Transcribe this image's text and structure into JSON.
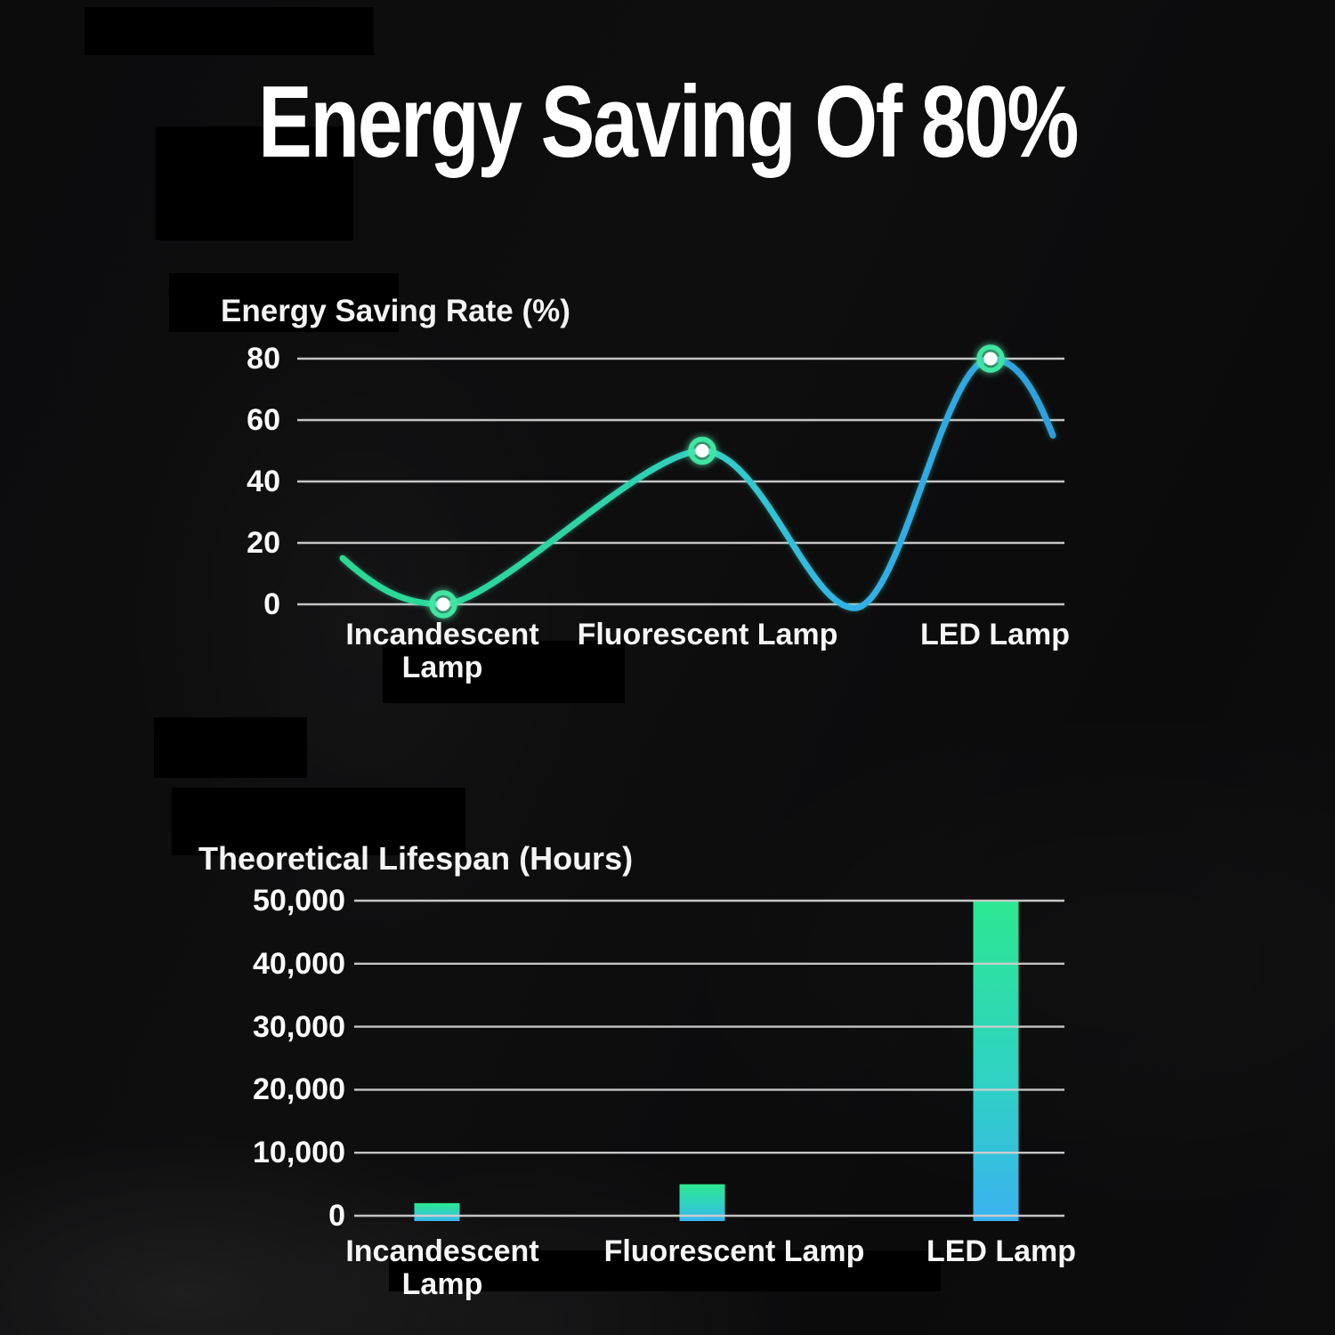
{
  "page": {
    "title": "Energy Saving Of 80%"
  },
  "chart_data": [
    {
      "type": "line",
      "title": "Energy Saving Rate (%)",
      "categories": [
        "Incandescent Lamp",
        "Fluorescent Lamp",
        "LED Lamp"
      ],
      "values": [
        0,
        50,
        80
      ],
      "yticks": [
        80,
        60,
        40,
        20,
        0
      ],
      "ytick_labels": [
        "80",
        "60",
        "40",
        "20",
        "0"
      ],
      "ylim": [
        0,
        80
      ],
      "grid": true,
      "grid_color": "#cfcfcf",
      "legend": "none",
      "line_gradient": [
        {
          "offset": "0%",
          "color": "#2bdb90"
        },
        {
          "offset": "38%",
          "color": "#2dd4a4"
        },
        {
          "offset": "56%",
          "color": "#31ccca"
        },
        {
          "offset": "72%",
          "color": "#30b2e8"
        },
        {
          "offset": "100%",
          "color": "#2f9edc"
        }
      ],
      "marker": {
        "ring_color": "#41e5a1",
        "fill": "#ffffff"
      }
    },
    {
      "type": "bar",
      "title": "Theoretical Lifespan (Hours)",
      "categories": [
        "Incandescent Lamp",
        "Fluorescent Lamp",
        "LED Lamp"
      ],
      "values": [
        2000,
        5000,
        50000
      ],
      "yticks": [
        50000,
        40000,
        30000,
        20000,
        10000,
        0
      ],
      "ytick_labels": [
        "50,000",
        "40,000",
        "30,000",
        "20,000",
        "10,000",
        "0"
      ],
      "ylim": [
        0,
        50000
      ],
      "grid": true,
      "grid_color": "#cfcfcf",
      "legend": "none",
      "bar_gradient": [
        {
          "offset": "0%",
          "color": "#2ce791"
        },
        {
          "offset": "55%",
          "color": "#2fd2c2"
        },
        {
          "offset": "100%",
          "color": "#3ab2f0"
        }
      ]
    }
  ]
}
